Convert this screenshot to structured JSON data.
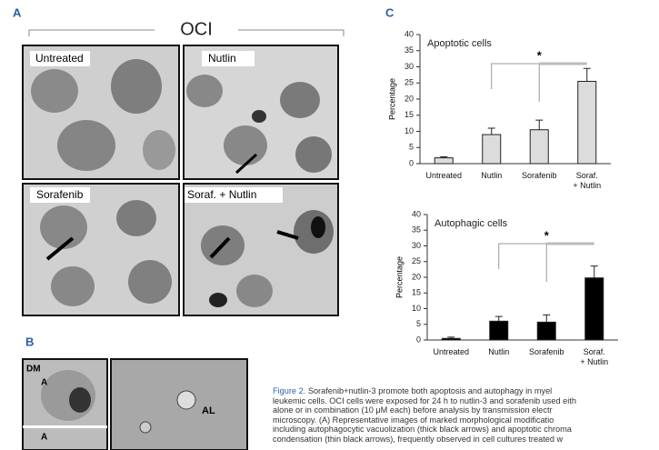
{
  "panels": {
    "a": "A",
    "b": "B",
    "c": "C"
  },
  "panel_a": {
    "group": "OCI",
    "images": [
      "Untreated",
      "Nutlin",
      "Sorafenib",
      "Soraf. + Nutlin"
    ]
  },
  "panel_b": {
    "labels": [
      "DM",
      "A",
      "A",
      "AL"
    ]
  },
  "chart_data": [
    {
      "type": "bar",
      "title": "Apoptotic cells",
      "y_label": "Percentage",
      "categories": [
        "Untreated",
        "Nutlin",
        "Sorafenib",
        "Soraf.\n+ Nutlin"
      ],
      "series": [
        {
          "color": "#dcdcdc",
          "values": [
            1.8,
            9,
            10.5,
            25.5
          ],
          "errors": [
            0.3,
            2,
            3,
            4
          ]
        }
      ],
      "ylim": [
        0,
        40
      ],
      "yticks": [
        0,
        5,
        10,
        15,
        20,
        25,
        30,
        35,
        40
      ],
      "annotation": "*"
    },
    {
      "type": "bar",
      "title": "Autophagic cells",
      "y_label": "Percentage",
      "categories": [
        "Untreated",
        "Nutlin",
        "Sorafenib",
        "Soraf.\n+ Nutlin"
      ],
      "series": [
        {
          "color": "#000000",
          "values": [
            0.5,
            6,
            5.7,
            19.8
          ],
          "errors": [
            0.4,
            1.5,
            2.3,
            3.8
          ]
        }
      ],
      "ylim": [
        0,
        40
      ],
      "yticks": [
        0,
        5,
        10,
        15,
        20,
        25,
        30,
        35,
        40
      ],
      "annotation": "*"
    }
  ],
  "caption": {
    "label": "Figure 2.",
    "lines": [
      " Sorafenib+nutlin-3 promote both apoptosis and autophagy in myel",
      "leukemic cells. OCI cells were exposed for 24 h to nutlin-3 and sorafenib used eith",
      "alone or in combination (10 μM each) before analysis by transmission electr",
      "microscopy. (A) Representative images of marked morphological modificatio",
      "including autophagocytic vacuolization (thick black arrows) and apoptotic chroma",
      "condensation (thin black arrows), frequently observed in cell cultures treated w"
    ]
  }
}
